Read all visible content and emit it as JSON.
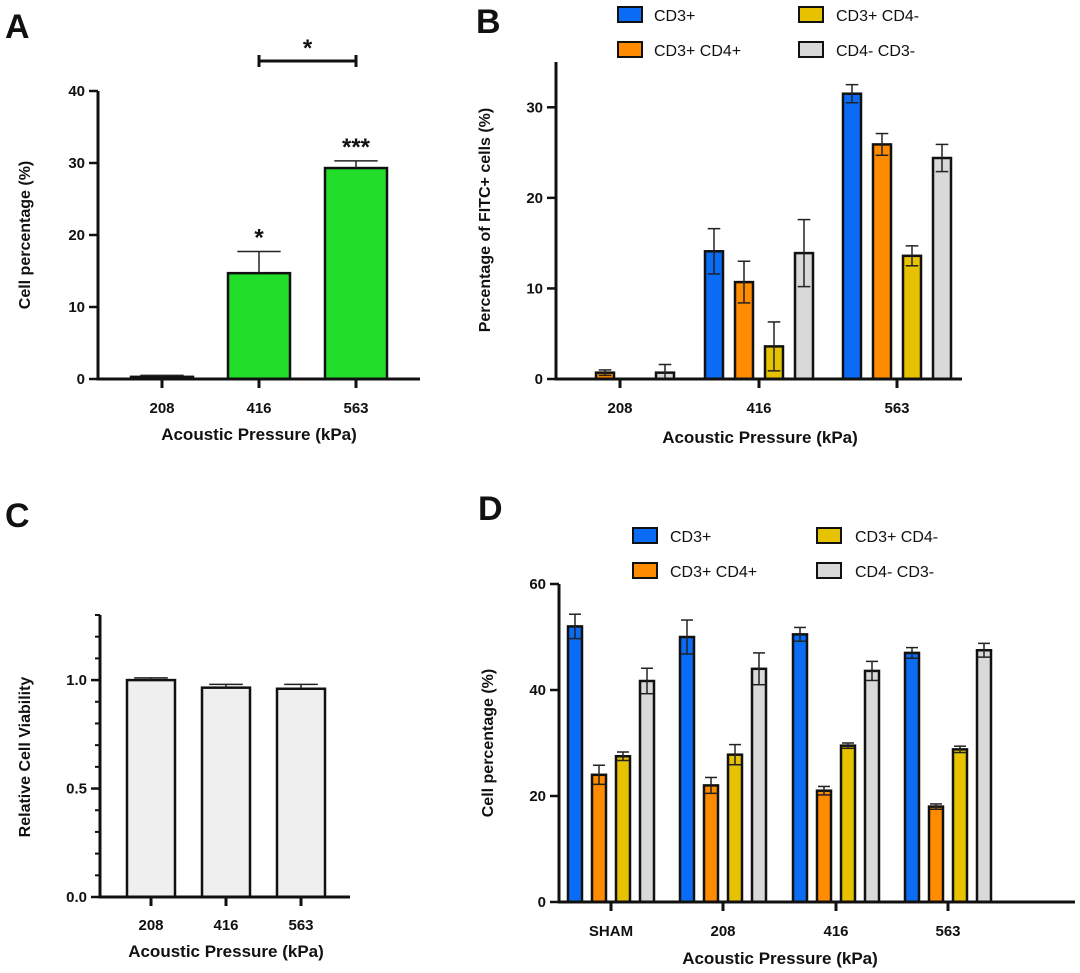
{
  "chart_data": [
    {
      "panel": "A",
      "type": "bar",
      "categories": [
        "208",
        "416",
        "563"
      ],
      "values": [
        0.3,
        14.7,
        29.3
      ],
      "errors": [
        0.2,
        3.0,
        1.0
      ],
      "color": "#22dd2a",
      "xlabel": "Acoustic Pressure (kPa)",
      "ylabel": "Cell percentage (%)",
      "ylim": [
        0,
        40
      ],
      "yticks": [
        0,
        10,
        20,
        30,
        40
      ],
      "ytick_labels": [
        "0",
        "10",
        "20",
        "30",
        "40"
      ],
      "grid": false,
      "annotations": [
        {
          "category": "416",
          "text": "*"
        },
        {
          "category": "563",
          "text": "***"
        }
      ],
      "comparisons": [
        {
          "from": "416",
          "to": "563",
          "text": "*"
        }
      ]
    },
    {
      "panel": "B",
      "type": "bar",
      "categories": [
        "208",
        "416",
        "563"
      ],
      "series": [
        {
          "name": "CD3+",
          "color": "#0a6cf5",
          "values": [
            0,
            14.1,
            31.5
          ],
          "errors": [
            0,
            2.5,
            1.0
          ]
        },
        {
          "name": "CD3+ CD4+",
          "color": "#ff8c00",
          "values": [
            0.7,
            10.7,
            25.9
          ],
          "errors": [
            0.3,
            2.3,
            1.2
          ]
        },
        {
          "name": "CD3+ CD4-",
          "color": "#e6c200",
          "values": [
            0,
            3.6,
            13.6
          ],
          "errors": [
            0,
            2.7,
            1.1
          ]
        },
        {
          "name": "CD4- CD3-",
          "color": "#d9d9d9",
          "values": [
            0.7,
            13.9,
            24.4
          ],
          "errors": [
            0.9,
            3.7,
            1.5
          ]
        }
      ],
      "xlabel": "Acoustic Pressure (kPa)",
      "ylabel": "Percentage of FITC+ cells (%)",
      "ylim": [
        0,
        35
      ],
      "yticks": [
        0,
        10,
        20,
        30
      ],
      "ytick_labels": [
        "0",
        "10",
        "20",
        "30"
      ],
      "grid": false,
      "legend_placement": "top"
    },
    {
      "panel": "C",
      "type": "bar",
      "categories": [
        "208",
        "416",
        "563"
      ],
      "values": [
        1.0,
        0.965,
        0.96
      ],
      "errors": [
        0.01,
        0.015,
        0.02
      ],
      "color": "#efefef",
      "xlabel": "Acoustic Pressure (kPa)",
      "ylabel": "Relative Cell Viability",
      "ylim": [
        0,
        1.3
      ],
      "yticks": [
        0,
        0.5,
        1.0
      ],
      "ytick_labels": [
        "0.0",
        "0.5",
        "1.0"
      ],
      "minor_tick_step": 0.1,
      "grid": false
    },
    {
      "panel": "D",
      "type": "bar",
      "categories": [
        "SHAM",
        "208",
        "416",
        "563"
      ],
      "series": [
        {
          "name": "CD3+",
          "color": "#0a6cf5",
          "values": [
            52,
            50,
            50.5,
            47
          ],
          "errors": [
            2.3,
            3.2,
            1.3,
            1.0
          ]
        },
        {
          "name": "CD3+ CD4+",
          "color": "#ff8c00",
          "values": [
            24,
            22,
            21,
            18
          ],
          "errors": [
            1.8,
            1.5,
            0.8,
            0.5
          ]
        },
        {
          "name": "CD3+ CD4-",
          "color": "#e6c200",
          "values": [
            27.5,
            27.8,
            29.5,
            28.8
          ],
          "errors": [
            0.8,
            1.9,
            0.5,
            0.6
          ]
        },
        {
          "name": "CD4- CD3-",
          "color": "#d9d9d9",
          "values": [
            41.7,
            44,
            43.6,
            47.5
          ],
          "errors": [
            2.4,
            3.0,
            1.8,
            1.3
          ]
        }
      ],
      "xlabel": "Acoustic Pressure (kPa)",
      "ylabel": "Cell percentage (%)",
      "ylim": [
        0,
        60
      ],
      "yticks": [
        0,
        20,
        40,
        60
      ],
      "ytick_labels": [
        "0",
        "20",
        "40",
        "60"
      ],
      "grid": false,
      "legend_placement": "top"
    }
  ]
}
